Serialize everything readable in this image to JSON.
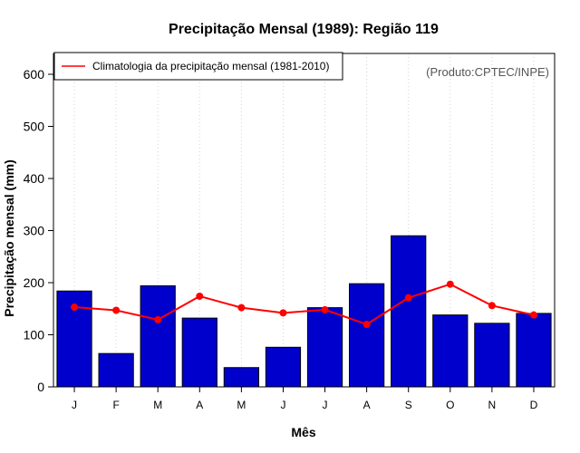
{
  "colors": {
    "bar_fill": "#0000CC",
    "bar_stroke": "#000000",
    "line": "#FF0000",
    "grid": "#D3D3D3",
    "credit": "#555555"
  },
  "chart_data": {
    "type": "bar",
    "title": "Precipitação Mensal (1989): Região 119",
    "xlabel": "Mês",
    "ylabel": "Precipitação mensal (mm)",
    "ylim": [
      0,
      640
    ],
    "yticks": [
      0,
      100,
      200,
      300,
      400,
      500,
      600
    ],
    "categories": [
      "J",
      "F",
      "M",
      "A",
      "M",
      "J",
      "J",
      "A",
      "S",
      "O",
      "N",
      "D"
    ],
    "series": [
      {
        "name": "Precipitação mensal (1989)",
        "type": "bar",
        "values": [
          184,
          64,
          194,
          132,
          37,
          76,
          152,
          198,
          290,
          138,
          122,
          141
        ]
      },
      {
        "name": "Climatologia da precipitação mensal (1981-2010)",
        "type": "line",
        "values": [
          153,
          147,
          129,
          174,
          152,
          142,
          148,
          120,
          171,
          197,
          156,
          138
        ]
      }
    ],
    "legend": {
      "position": "top-left",
      "entries": [
        "Climatologia da precipitação mensal (1981-2010)"
      ]
    },
    "annotation": "(Produto:CPTEC/INPE)",
    "grid": "vertical-dotted"
  }
}
